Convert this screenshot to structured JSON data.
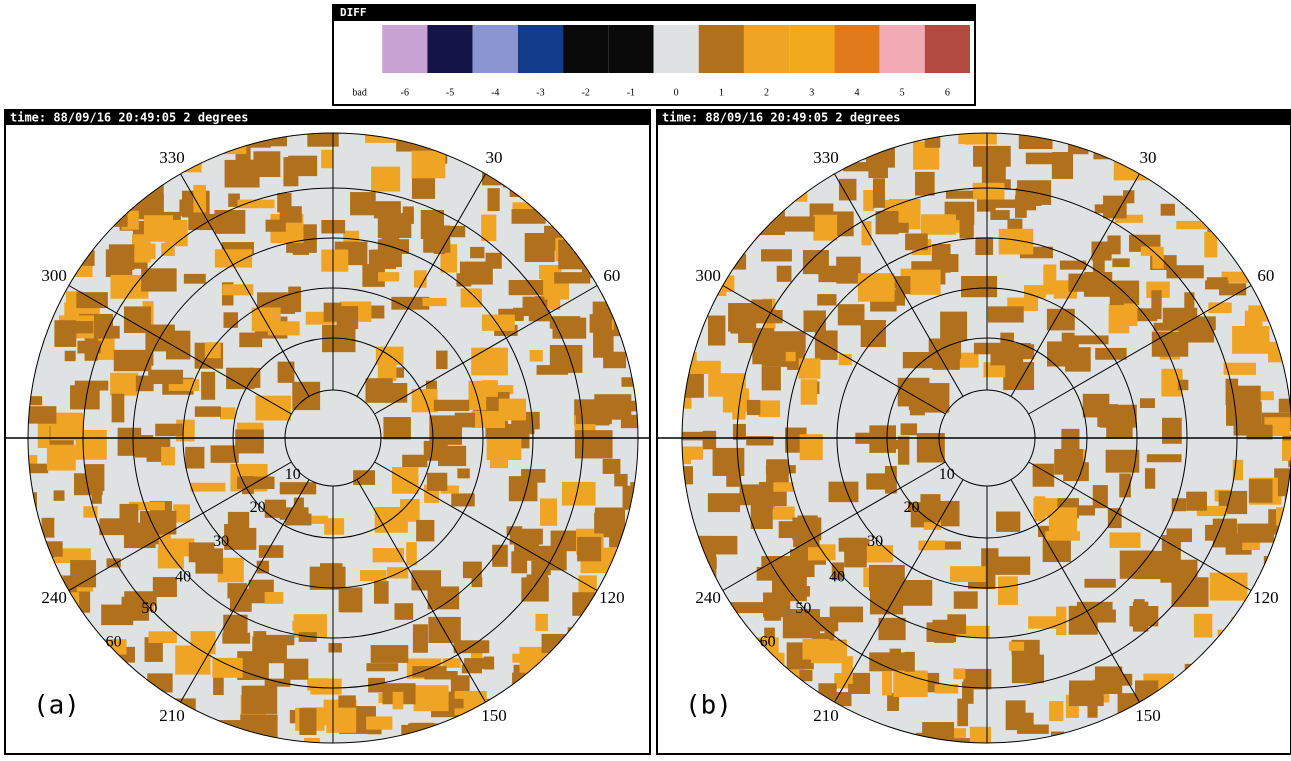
{
  "colorbar": {
    "title": "DIFF",
    "labels": [
      "bad",
      "-6",
      "-5",
      "-4",
      "-3",
      "-2",
      "-1",
      "0",
      "1",
      "2",
      "3",
      "4",
      "5",
      "6"
    ],
    "colors": [
      "#ffffff",
      "#c8a2d2",
      "#141446",
      "#8a96d2",
      "#123c8a",
      "#0a0a0a",
      "#0a0a0a",
      "#dfe2e2",
      "#b0701c",
      "#f0a424",
      "#f2aa1c",
      "#e07a1a",
      "#f2aab4",
      "#b24a42"
    ]
  },
  "panels": [
    {
      "header": "time:  88/09/16 20:49:05 2 degrees",
      "azimuth_labels": [
        "330",
        "30",
        "60",
        "120",
        "150",
        "210",
        "240",
        "300"
      ],
      "range_labels": [
        "10",
        "20",
        "30",
        "40",
        "50",
        "60"
      ],
      "label": "(a)"
    },
    {
      "header": "time:  88/09/16 20:49:05 2 degrees",
      "azimuth_labels": [
        "330",
        "30",
        "60",
        "120",
        "150",
        "210",
        "240",
        "300"
      ],
      "range_labels": [
        "10",
        "20",
        "30",
        "40",
        "50",
        "60"
      ],
      "label": "(b)"
    }
  ]
}
